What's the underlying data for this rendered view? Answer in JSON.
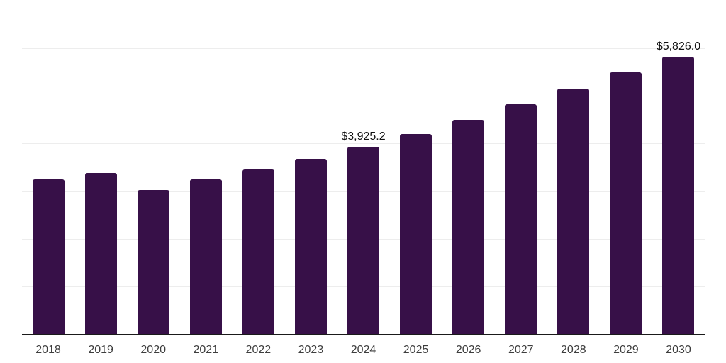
{
  "chart_data": {
    "type": "bar",
    "title": "",
    "xlabel": "",
    "ylabel": "",
    "categories": [
      "2018",
      "2019",
      "2020",
      "2021",
      "2022",
      "2023",
      "2024",
      "2025",
      "2026",
      "2027",
      "2028",
      "2029",
      "2030"
    ],
    "values": [
      3240,
      3385,
      3030,
      3250,
      3455,
      3680,
      3925.2,
      4200,
      4500,
      4820,
      5150,
      5490,
      5826
    ],
    "data_labels": {
      "2024": "$3,925.2",
      "2030": "$5,826.0"
    },
    "ylim": [
      0,
      7000
    ],
    "gridline_step": 1000,
    "grid": "horizontal-only",
    "y_tick_labels_visible": false,
    "legend": "none",
    "bar_color": "#371048",
    "gridline_color": "#ededed",
    "axis_line_color": "#1a1a1a",
    "x_label_color": "#3d3d3d",
    "data_label_color": "#111111"
  }
}
